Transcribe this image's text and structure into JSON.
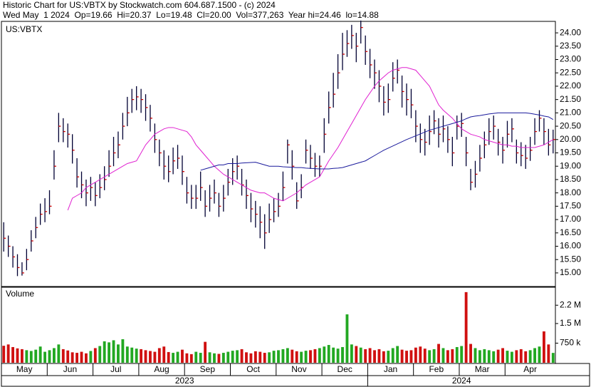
{
  "chart_data": {
    "type": "ohlc",
    "title": "Historic Chart for US:VBTX by Stockwatch.com 604.687.1500 - (c) 2024",
    "subtitle": "Wed May  1 2024  Op=19.66  Hi=20.37  Lo=19.48  Cl=20.00  Vol=377,263  Year hi=24.46  lo=14.88",
    "symbol": "US:VBTX",
    "bar_color": "#000033",
    "close_color": "#cc0000",
    "categories": [
      "May",
      null,
      null,
      null,
      null,
      null,
      null,
      null,
      null,
      null,
      "Jun",
      null,
      null,
      null,
      null,
      null,
      null,
      null,
      null,
      null,
      "Jul",
      null,
      null,
      null,
      null,
      null,
      null,
      null,
      null,
      null,
      "Aug",
      null,
      null,
      null,
      null,
      null,
      null,
      null,
      null,
      null,
      "Sep",
      null,
      null,
      null,
      null,
      null,
      null,
      null,
      null,
      null,
      "Oct",
      null,
      null,
      null,
      null,
      null,
      null,
      null,
      null,
      null,
      "Nov",
      null,
      null,
      null,
      null,
      null,
      null,
      null,
      null,
      null,
      "Dec",
      null,
      null,
      null,
      null,
      null,
      null,
      null,
      null,
      null,
      "Jan",
      null,
      null,
      null,
      null,
      null,
      null,
      null,
      null,
      null,
      "Feb",
      null,
      null,
      null,
      null,
      null,
      null,
      null,
      null,
      null,
      "Mar",
      null,
      null,
      null,
      null,
      null,
      null,
      null,
      null,
      null,
      "Apr",
      null,
      null,
      null,
      null,
      null,
      null,
      null,
      null,
      null,
      null
    ],
    "years": [
      "2023",
      "2024"
    ],
    "high": [
      16.9,
      16.4,
      16.0,
      15.7,
      15.4,
      15.9,
      16.6,
      17.1,
      17.6,
      17.8,
      18.1,
      19.6,
      21.0,
      20.8,
      20.6,
      20.2,
      19.3,
      18.8,
      18.5,
      18.6,
      18.4,
      18.7,
      19.0,
      19.6,
      20.1,
      20.3,
      21.0,
      21.6,
      21.9,
      22.0,
      21.9,
      21.7,
      21.3,
      20.6,
      20.0,
      19.6,
      19.4,
      19.7,
      19.8,
      19.4,
      18.6,
      18.3,
      18.3,
      18.8,
      18.1,
      18.3,
      18.5,
      18.0,
      18.3,
      18.9,
      19.3,
      19.4,
      18.9,
      18.5,
      18.0,
      17.7,
      17.5,
      17.2,
      17.6,
      17.8,
      18.0,
      18.8,
      20.0,
      19.6,
      18.4,
      18.7,
      20.0,
      19.8,
      19.5,
      19.4,
      20.8,
      21.8,
      22.5,
      23.2,
      24.0,
      24.1,
      24.3,
      24.0,
      24.46,
      23.9,
      23.4,
      23.0,
      22.6,
      22.0,
      22.1,
      22.9,
      23.0,
      22.4,
      22.1,
      21.9,
      21.1,
      20.6,
      20.4,
      20.9,
      21.1,
      20.8,
      20.9,
      20.5,
      20.1,
      20.9,
      21.0,
      20.1,
      18.9,
      19.2,
      19.8,
      20.3,
      20.8,
      20.9,
      20.4,
      20.1,
      20.7,
      20.8,
      20.0,
      19.9,
      19.8,
      20.1,
      20.8,
      21.1,
      20.8,
      20.4,
      20.37
    ],
    "low": [
      15.8,
      15.6,
      15.2,
      14.88,
      14.9,
      15.1,
      15.8,
      16.3,
      16.8,
      16.9,
      17.2,
      18.5,
      19.9,
      19.9,
      19.7,
      19.1,
      18.2,
      17.8,
      17.5,
      17.7,
      17.5,
      17.8,
      18.1,
      18.6,
      19.0,
      19.3,
      20.0,
      20.5,
      21.0,
      21.1,
      21.0,
      20.7,
      20.3,
      19.5,
      19.0,
      18.5,
      18.4,
      18.7,
      18.9,
      18.3,
      17.6,
      17.4,
      17.4,
      17.7,
      17.1,
      17.3,
      17.6,
      17.1,
      17.3,
      17.9,
      18.3,
      18.5,
      17.9,
      17.4,
      16.9,
      16.7,
      16.3,
      15.9,
      16.5,
      16.9,
      17.1,
      17.7,
      19.1,
      18.5,
      17.4,
      17.8,
      19.1,
      18.9,
      18.6,
      18.6,
      19.5,
      20.6,
      21.2,
      21.9,
      22.6,
      23.1,
      23.4,
      22.9,
      23.6,
      22.8,
      22.3,
      21.9,
      21.4,
      20.9,
      21.0,
      21.8,
      22.1,
      21.2,
      20.9,
      20.8,
      19.9,
      19.5,
      19.4,
      19.8,
      20.2,
      19.7,
      19.9,
      19.5,
      19.0,
      20.0,
      20.1,
      19.0,
      18.1,
      18.2,
      18.8,
      19.3,
      19.8,
      20.0,
      19.4,
      19.1,
      19.7,
      19.9,
      19.1,
      19.0,
      18.9,
      19.2,
      19.8,
      20.3,
      19.8,
      19.4,
      19.48
    ],
    "close": [
      16.3,
      16.0,
      15.6,
      15.2,
      15.0,
      15.5,
      16.2,
      16.7,
      17.2,
      17.3,
      17.5,
      19.0,
      20.5,
      20.3,
      20.2,
      19.6,
      18.6,
      18.3,
      18.0,
      18.2,
      17.9,
      18.2,
      18.5,
      19.0,
      19.5,
      19.8,
      20.5,
      21.0,
      21.5,
      21.6,
      21.5,
      21.2,
      20.8,
      20.0,
      19.5,
      19.0,
      18.8,
      19.2,
      19.3,
      18.8,
      18.0,
      17.8,
      17.8,
      18.2,
      17.5,
      17.8,
      18.0,
      17.5,
      17.8,
      18.4,
      18.8,
      19.0,
      18.3,
      17.9,
      17.4,
      17.2,
      16.9,
      16.5,
      17.0,
      17.3,
      17.5,
      18.2,
      19.8,
      19.0,
      17.7,
      18.2,
      19.6,
      19.3,
      19.0,
      19.0,
      20.2,
      21.2,
      21.7,
      22.5,
      23.2,
      23.6,
      23.9,
      23.5,
      24.2,
      23.3,
      22.8,
      22.5,
      22.0,
      21.4,
      21.5,
      22.3,
      22.6,
      21.8,
      21.5,
      21.3,
      20.5,
      20.0,
      19.9,
      20.3,
      20.7,
      20.2,
      20.4,
      20.0,
      19.5,
      20.5,
      20.6,
      19.5,
      18.4,
      18.7,
      19.3,
      19.8,
      20.3,
      20.5,
      19.9,
      19.6,
      20.2,
      20.4,
      19.5,
      19.4,
      19.3,
      19.6,
      20.3,
      20.8,
      20.3,
      19.8,
      20.0
    ],
    "moving_averages": [
      {
        "color": "#e020d0",
        "values": [
          null,
          null,
          null,
          null,
          null,
          null,
          null,
          null,
          null,
          null,
          null,
          null,
          null,
          null,
          17.35,
          17.8,
          17.9,
          18.0,
          18.2,
          18.3,
          18.4,
          18.5,
          18.6,
          18.7,
          18.8,
          18.9,
          19.0,
          19.1,
          19.15,
          19.2,
          19.5,
          19.8,
          20.0,
          20.2,
          20.3,
          20.4,
          20.45,
          20.45,
          20.4,
          20.35,
          20.3,
          20.1,
          19.8,
          19.6,
          19.4,
          19.2,
          19.0,
          18.85,
          18.7,
          18.6,
          18.5,
          18.4,
          18.3,
          18.2,
          18.1,
          18.05,
          18.0,
          18.0,
          17.9,
          17.8,
          17.75,
          17.7,
          17.8,
          17.9,
          18.0,
          18.15,
          18.3,
          18.4,
          18.5,
          18.6,
          18.9,
          19.2,
          19.45,
          19.7,
          20.0,
          20.3,
          20.6,
          20.9,
          21.2,
          21.5,
          21.75,
          22.0,
          22.2,
          22.35,
          22.5,
          22.6,
          22.65,
          22.7,
          22.7,
          22.65,
          22.6,
          22.4,
          22.2,
          22.0,
          21.65,
          21.3,
          21.1,
          20.95,
          20.8,
          20.6,
          20.4,
          20.3,
          20.2,
          20.15,
          20.1,
          20.0,
          19.95,
          19.9,
          19.85,
          19.8,
          19.8,
          19.75,
          19.75,
          19.7,
          19.7,
          19.7,
          19.7,
          19.75,
          19.8,
          19.9,
          20.0
        ]
      },
      {
        "color": "#1a1a9c",
        "values": [
          null,
          null,
          null,
          null,
          null,
          null,
          null,
          null,
          null,
          null,
          null,
          null,
          null,
          null,
          null,
          null,
          null,
          null,
          null,
          null,
          null,
          null,
          null,
          null,
          null,
          null,
          null,
          null,
          null,
          null,
          null,
          null,
          null,
          null,
          null,
          null,
          null,
          null,
          null,
          null,
          null,
          null,
          null,
          18.85,
          18.9,
          18.95,
          19.0,
          19.05,
          19.05,
          19.1,
          19.1,
          19.1,
          19.12,
          19.13,
          19.14,
          19.15,
          19.1,
          19.05,
          19.0,
          19.0,
          19.0,
          18.98,
          18.97,
          18.96,
          18.95,
          18.95,
          18.93,
          18.92,
          18.91,
          18.9,
          18.9,
          18.9,
          18.92,
          18.93,
          18.95,
          19.0,
          19.05,
          19.1,
          19.15,
          19.2,
          19.3,
          19.4,
          19.5,
          19.6,
          19.68,
          19.76,
          19.84,
          19.92,
          20.0,
          20.07,
          20.14,
          20.21,
          20.28,
          20.35,
          20.4,
          20.45,
          20.5,
          20.55,
          20.6,
          20.65,
          20.7,
          20.78,
          20.85,
          20.88,
          20.9,
          20.93,
          20.96,
          20.98,
          21.0,
          21.0,
          21.0,
          21.0,
          21.0,
          21.0,
          21.0,
          20.98,
          20.95,
          20.92,
          20.88,
          20.85,
          20.75
        ]
      }
    ],
    "ylim": [
      14.49,
      24.43
    ],
    "yticks": [
      {
        "value": 15,
        "label": "15.00"
      },
      {
        "value": 15.5,
        "label": "15.50"
      },
      {
        "value": 16,
        "label": "16.00"
      },
      {
        "value": 16.5,
        "label": "16.50"
      },
      {
        "value": 17,
        "label": "17.00"
      },
      {
        "value": 17.5,
        "label": "17.50"
      },
      {
        "value": 18,
        "label": "18.00"
      },
      {
        "value": 18.5,
        "label": "18.50"
      },
      {
        "value": 19,
        "label": "19.00"
      },
      {
        "value": 19.5,
        "label": "19.50"
      },
      {
        "value": 20,
        "label": "20.00"
      },
      {
        "value": 20.5,
        "label": "20.50"
      },
      {
        "value": 21,
        "label": "21.00"
      },
      {
        "value": 21.5,
        "label": "21.50"
      },
      {
        "value": 22,
        "label": "22.00"
      },
      {
        "value": 22.5,
        "label": "22.50"
      },
      {
        "value": 23,
        "label": "23.00"
      },
      {
        "value": 23.5,
        "label": "23.50"
      },
      {
        "value": 24,
        "label": "24.00"
      }
    ],
    "volume": {
      "label": "Volume",
      "up_color": "#22a822",
      "down_color": "#d01010",
      "ylim": [
        0,
        2833000
      ],
      "yticks": [
        {
          "value": 750000,
          "label": "750 k"
        },
        {
          "value": 1500000,
          "label": "1.5 M"
        },
        {
          "value": 2200000,
          "label": "2.2 M"
        }
      ],
      "values": [
        650000,
        700000,
        600000,
        550000,
        520000,
        480000,
        450000,
        500000,
        620000,
        420000,
        480000,
        560000,
        700000,
        520000,
        470000,
        400000,
        380000,
        420000,
        360000,
        450000,
        560000,
        640000,
        820000,
        780000,
        860000,
        700000,
        900000,
        620000,
        580000,
        540000,
        520000,
        480000,
        450000,
        420000,
        560000,
        620000,
        410000,
        380000,
        420000,
        500000,
        360000,
        330000,
        420000,
        380000,
        800000,
        400000,
        360000,
        340000,
        380000,
        420000,
        460000,
        480000,
        520000,
        400000,
        360000,
        440000,
        420000,
        380000,
        400000,
        460000,
        480000,
        520000,
        560000,
        500000,
        440000,
        420000,
        460000,
        480000,
        520000,
        560000,
        620000,
        680000,
        580000,
        540000,
        600000,
        1850000,
        700000,
        640000,
        580000,
        520000,
        560000,
        480000,
        520000,
        440000,
        460000,
        560000,
        640000,
        500000,
        460000,
        480000,
        580000,
        620000,
        540000,
        480000,
        520000,
        720000,
        560000,
        480000,
        520000,
        600000,
        640000,
        2700000,
        720000,
        560000,
        480000,
        520000,
        480000,
        440000,
        500000,
        560000,
        460000,
        420000,
        480000,
        520000,
        440000,
        480000,
        560000,
        620000,
        1200000,
        700000,
        377263
      ]
    }
  }
}
